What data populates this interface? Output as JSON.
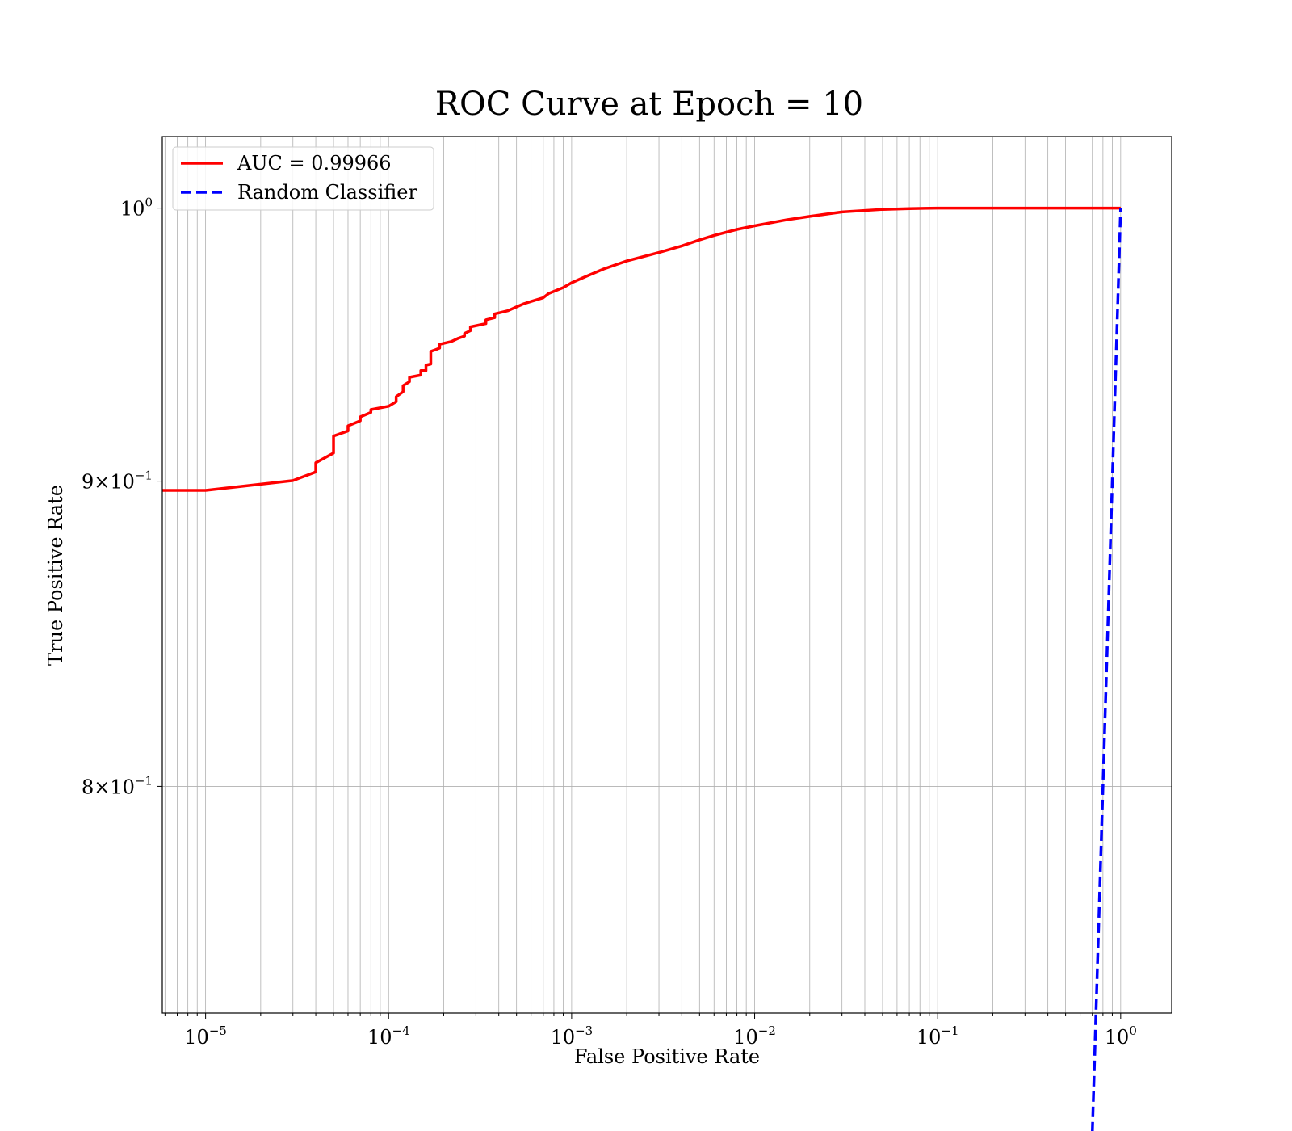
{
  "chart_data": {
    "type": "line",
    "title": "ROC Curve at Epoch = 10",
    "xlabel": "False Positive Rate",
    "ylabel": "True Positive Rate",
    "xscale": "log",
    "yscale": "log",
    "xlim": [
      5.8e-06,
      1.9
    ],
    "ylim": [
      0.733,
      1.028
    ],
    "grid": "major and minor (x), major (y)",
    "legend_location": "upper-left",
    "x_ticks": [
      {
        "value": 1e-05,
        "base": "10",
        "exp": "−5"
      },
      {
        "value": 0.0001,
        "base": "10",
        "exp": "−4"
      },
      {
        "value": 0.001,
        "base": "10",
        "exp": "−3"
      },
      {
        "value": 0.01,
        "base": "10",
        "exp": "−2"
      },
      {
        "value": 0.1,
        "base": "10",
        "exp": "−1"
      },
      {
        "value": 1,
        "base": "10",
        "exp": "0"
      }
    ],
    "y_ticks": [
      {
        "value": 1.0,
        "mantissa": "",
        "base": "10",
        "exp": "0"
      },
      {
        "value": 0.9,
        "mantissa": "9×",
        "base": "10",
        "exp": "−1"
      },
      {
        "value": 0.8,
        "mantissa": "8×",
        "base": "10",
        "exp": "−1"
      }
    ],
    "series": [
      {
        "name": "AUC = 0.99966",
        "color": "#ff0000",
        "style": "solid",
        "x": [
          5.8e-06,
          1e-05,
          3e-05,
          4e-05,
          4e-05,
          5e-05,
          5e-05,
          6e-05,
          6e-05,
          7e-05,
          7e-05,
          8e-05,
          8e-05,
          0.0001,
          0.00011,
          0.00011,
          0.00012,
          0.00012,
          0.00013,
          0.00013,
          0.00015,
          0.00015,
          0.00016,
          0.00016,
          0.00017,
          0.00017,
          0.00018,
          0.00019,
          0.00019,
          0.00022,
          0.00024,
          0.00026,
          0.00026,
          0.00028,
          0.00028,
          0.00034,
          0.00034,
          0.00038,
          0.00038,
          0.00045,
          0.0005,
          0.00055,
          0.0006,
          0.0007,
          0.00075,
          0.0009,
          0.001,
          0.0012,
          0.0015,
          0.002,
          0.003,
          0.004,
          0.005,
          0.006,
          0.008,
          0.01,
          0.015,
          0.02,
          0.03,
          0.05,
          0.07,
          0.1,
          0.3,
          0.5,
          1.0
        ],
        "y": [
          0.8968,
          0.8968,
          0.9002,
          0.9032,
          0.9064,
          0.9098,
          0.9158,
          0.9176,
          0.9194,
          0.9212,
          0.9226,
          0.9242,
          0.9252,
          0.9264,
          0.928,
          0.9298,
          0.9316,
          0.9338,
          0.9352,
          0.9368,
          0.9376,
          0.9392,
          0.9392,
          0.9412,
          0.9416,
          0.9462,
          0.9468,
          0.9474,
          0.9488,
          0.9498,
          0.951,
          0.9518,
          0.9528,
          0.9538,
          0.9552,
          0.9564,
          0.9578,
          0.9586,
          0.96,
          0.9612,
          0.9626,
          0.9638,
          0.9646,
          0.966,
          0.9676,
          0.9698,
          0.9716,
          0.974,
          0.9768,
          0.9798,
          0.983,
          0.9855,
          0.9878,
          0.9895,
          0.9918,
          0.9932,
          0.9955,
          0.9968,
          0.9985,
          0.9995,
          0.9998,
          1.0,
          1.0,
          1.0,
          1.0
        ]
      },
      {
        "name": "Random Classifier",
        "color": "#0000ff",
        "style": "dashed",
        "x": [
          0.7,
          0.75,
          0.8,
          0.85,
          0.9,
          0.95,
          1.0
        ],
        "y": [
          0.7,
          0.75,
          0.8,
          0.85,
          0.9,
          0.95,
          1.0
        ]
      }
    ]
  }
}
